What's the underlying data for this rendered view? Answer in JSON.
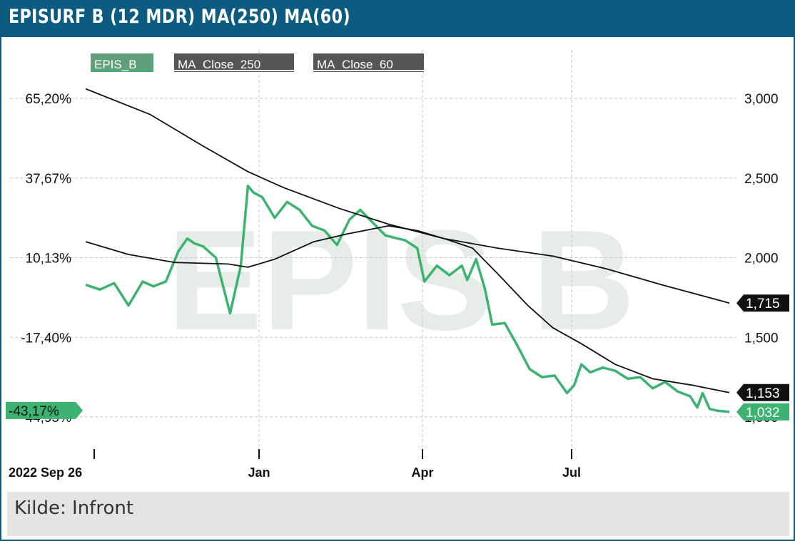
{
  "header": {
    "title": "EPISURF B (12 MDR) MA(250) MA(60)"
  },
  "footer": {
    "source": "Kilde: Infront"
  },
  "colors": {
    "brand": "#0b5c80",
    "series_green": "#3cb371",
    "ma_line": "#111111",
    "watermark": "#e6ece8"
  },
  "watermark": "EPIS B",
  "chart_data": {
    "type": "line",
    "title": "",
    "legend": {
      "placement": "top-left",
      "entries": [
        "EPIS_B",
        "MA_Close_250",
        "MA_Close_60"
      ]
    },
    "x_axis": {
      "start_label": "2022 Sep 26",
      "ticks": [
        "2022 Sep 26",
        "Jan",
        "Apr",
        "Jul"
      ],
      "range": [
        "2022-09-26",
        "2023-09-22"
      ]
    },
    "y_left": {
      "labels": [
        "65,20%",
        "37,67%",
        "10,13%",
        "-17,40%",
        "-44,95%"
      ],
      "unit": "%"
    },
    "y_right": {
      "ticks": [
        "3,000",
        "2,500",
        "2,000",
        "1,500",
        "1,000"
      ],
      "range": [
        1000,
        3000
      ]
    },
    "grid": true,
    "last_values": {
      "EPIS_B": "1,032",
      "EPIS_B_pct": "-43,17%",
      "MA_Close_250": "1,715",
      "MA_Close_60": "1,153"
    },
    "series": [
      {
        "name": "EPIS_B",
        "color": "#3cb371",
        "points": [
          [
            "2022-09-26",
            1830
          ],
          [
            "2022-10-04",
            1800
          ],
          [
            "2022-10-12",
            1840
          ],
          [
            "2022-10-20",
            1700
          ],
          [
            "2022-10-28",
            1850
          ],
          [
            "2022-11-03",
            1820
          ],
          [
            "2022-11-10",
            1850
          ],
          [
            "2022-11-17",
            2040
          ],
          [
            "2022-11-22",
            2120
          ],
          [
            "2022-11-26",
            2090
          ],
          [
            "2022-12-01",
            2070
          ],
          [
            "2022-12-08",
            2000
          ],
          [
            "2022-12-16",
            1650
          ],
          [
            "2022-12-22",
            1950
          ],
          [
            "2022-12-26",
            2450
          ],
          [
            "2022-12-29",
            2410
          ],
          [
            "2023-01-03",
            2380
          ],
          [
            "2023-01-10",
            2250
          ],
          [
            "2023-01-17",
            2350
          ],
          [
            "2023-01-24",
            2300
          ],
          [
            "2023-01-31",
            2200
          ],
          [
            "2023-02-07",
            2170
          ],
          [
            "2023-02-14",
            2080
          ],
          [
            "2023-02-21",
            2240
          ],
          [
            "2023-02-27",
            2300
          ],
          [
            "2023-03-06",
            2220
          ],
          [
            "2023-03-13",
            2140
          ],
          [
            "2023-03-20",
            2120
          ],
          [
            "2023-03-24",
            2110
          ],
          [
            "2023-03-31",
            2060
          ],
          [
            "2023-04-04",
            1850
          ],
          [
            "2023-04-11",
            1950
          ],
          [
            "2023-04-18",
            1890
          ],
          [
            "2023-04-25",
            1950
          ],
          [
            "2023-04-28",
            1860
          ],
          [
            "2023-05-03",
            1990
          ],
          [
            "2023-05-08",
            1800
          ],
          [
            "2023-05-12",
            1580
          ],
          [
            "2023-05-19",
            1590
          ],
          [
            "2023-05-26",
            1450
          ],
          [
            "2023-06-02",
            1300
          ],
          [
            "2023-06-09",
            1250
          ],
          [
            "2023-06-16",
            1260
          ],
          [
            "2023-06-23",
            1150
          ],
          [
            "2023-06-27",
            1200
          ],
          [
            "2023-07-01",
            1330
          ],
          [
            "2023-07-06",
            1280
          ],
          [
            "2023-07-13",
            1310
          ],
          [
            "2023-07-20",
            1290
          ],
          [
            "2023-07-27",
            1240
          ],
          [
            "2023-08-03",
            1250
          ],
          [
            "2023-08-10",
            1180
          ],
          [
            "2023-08-17",
            1220
          ],
          [
            "2023-08-24",
            1160
          ],
          [
            "2023-08-31",
            1130
          ],
          [
            "2023-09-04",
            1060
          ],
          [
            "2023-09-07",
            1150
          ],
          [
            "2023-09-11",
            1050
          ],
          [
            "2023-09-15",
            1040
          ],
          [
            "2023-09-22",
            1032
          ]
        ]
      },
      {
        "name": "MA_Close_250",
        "color": "#111111",
        "points": [
          [
            "2022-09-26",
            3060
          ],
          [
            "2022-11-01",
            2900
          ],
          [
            "2022-12-01",
            2700
          ],
          [
            "2022-12-26",
            2540
          ],
          [
            "2023-01-15",
            2440
          ],
          [
            "2023-02-15",
            2310
          ],
          [
            "2023-03-15",
            2210
          ],
          [
            "2023-04-15",
            2120
          ],
          [
            "2023-05-15",
            2060
          ],
          [
            "2023-06-15",
            2010
          ],
          [
            "2023-07-15",
            1930
          ],
          [
            "2023-08-15",
            1830
          ],
          [
            "2023-09-22",
            1715
          ]
        ]
      },
      {
        "name": "MA_Close_60",
        "color": "#111111",
        "points": [
          [
            "2022-09-26",
            2100
          ],
          [
            "2022-10-20",
            2020
          ],
          [
            "2022-11-15",
            1970
          ],
          [
            "2022-12-15",
            1960
          ],
          [
            "2022-12-26",
            1940
          ],
          [
            "2023-01-10",
            1990
          ],
          [
            "2023-02-01",
            2100
          ],
          [
            "2023-02-20",
            2150
          ],
          [
            "2023-03-15",
            2200
          ],
          [
            "2023-03-31",
            2170
          ],
          [
            "2023-04-15",
            2120
          ],
          [
            "2023-05-01",
            2060
          ],
          [
            "2023-05-15",
            1900
          ],
          [
            "2023-06-01",
            1700
          ],
          [
            "2023-06-15",
            1560
          ],
          [
            "2023-07-01",
            1460
          ],
          [
            "2023-07-20",
            1330
          ],
          [
            "2023-08-10",
            1240
          ],
          [
            "2023-09-01",
            1200
          ],
          [
            "2023-09-22",
            1153
          ]
        ]
      }
    ]
  }
}
